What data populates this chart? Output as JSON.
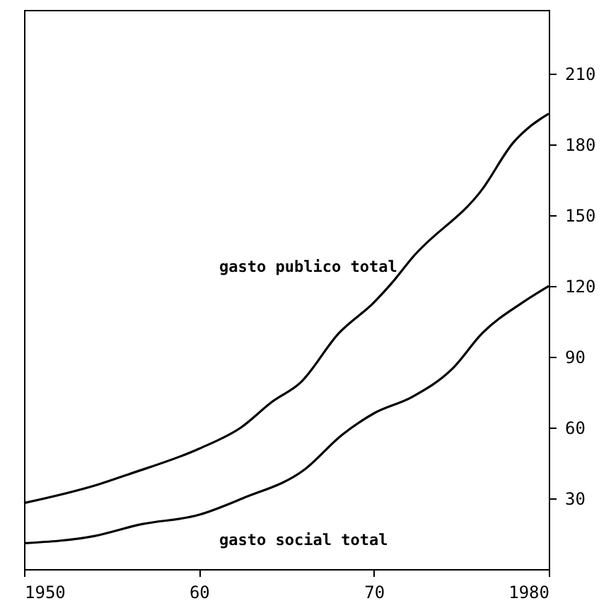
{
  "chart_data": {
    "type": "line",
    "x": [
      1950,
      1954.3,
      1955.9,
      1960,
      1962.4,
      1964.2,
      1965.8,
      1968,
      1970,
      1971,
      1972.2,
      1976.2,
      1978,
      1979,
      1980
    ],
    "series": [
      {
        "name": "gasto publico total",
        "color": "#000000",
        "values": [
          28,
          36,
          40,
          51,
          60,
          71,
          79,
          100,
          113,
          121,
          132,
          161,
          181,
          188,
          193
        ]
      },
      {
        "name": "gasto social total",
        "color": "#000000",
        "x": [
          1950,
          1954,
          1956.7,
          1960,
          1962.5,
          1966,
          1968.2,
          1970,
          1972.2,
          1974.5,
          1976.2,
          1978.5,
          1980
        ],
        "values": [
          11,
          14,
          19,
          23,
          30,
          42,
          57,
          66,
          73,
          85,
          100,
          113,
          120
        ]
      }
    ],
    "xlim": [
      1950,
      1980
    ],
    "xticks": [
      {
        "value": 1950,
        "label": "1950"
      },
      {
        "value": 1960,
        "label": "60"
      },
      {
        "value": 1970,
        "label": "70"
      },
      {
        "value": 1980,
        "label": "1980"
      }
    ],
    "ylim": [
      0,
      237
    ],
    "yticks": [
      30,
      60,
      90,
      120,
      150,
      180,
      210
    ],
    "grid": false,
    "marker": "none",
    "line_style": "solid"
  }
}
